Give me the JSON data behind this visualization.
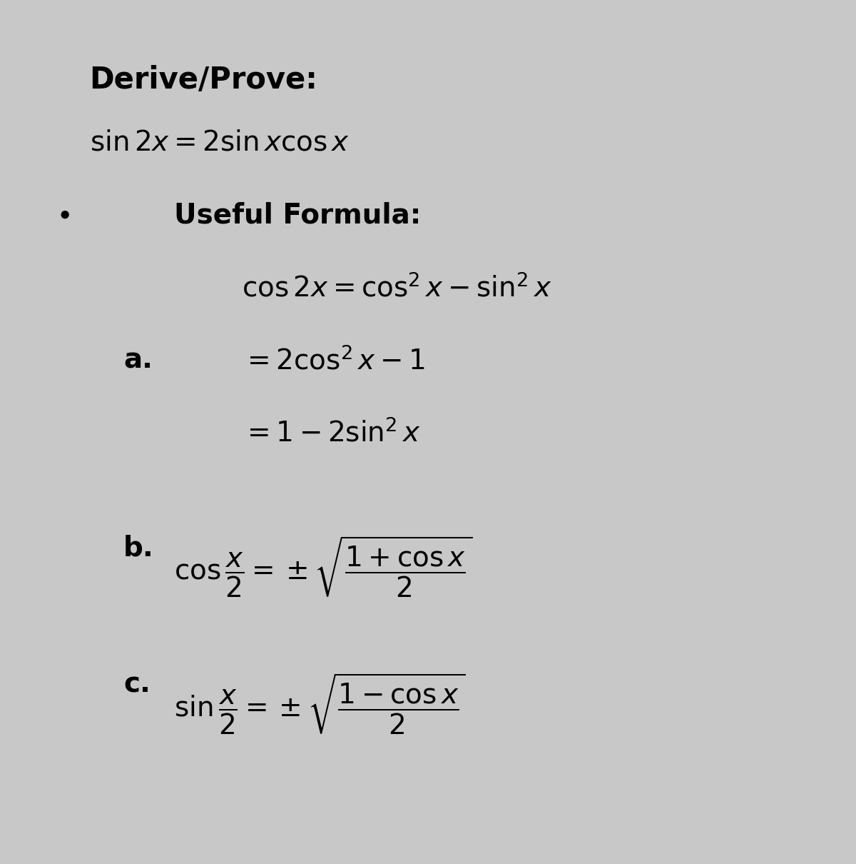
{
  "bg_color": "#c8c8c8",
  "text_color": "#000000",
  "title": "Derive/Prove:",
  "line1": "$\\sin 2x = 2\\sin x\\cos x$",
  "bullet": "Useful Formula:",
  "formula_main": "$\\cos 2x = \\cos^2 x - \\sin^2 x$",
  "formula_a_label": "a.",
  "formula_a1": "$= 2\\cos^2 x - 1$",
  "formula_a2": "$= 1 - 2\\sin^2 x$",
  "formula_b_label": "b.",
  "formula_b": "$\\cos\\dfrac{x}{2} = \\pm\\sqrt{\\dfrac{1+\\cos x}{2}}$",
  "formula_c_label": "c.",
  "formula_c": "$\\sin\\dfrac{x}{2} = \\pm\\sqrt{\\dfrac{1-\\cos x}{2}}$",
  "figsize": [
    12.0,
    12.1
  ],
  "dpi": 100
}
